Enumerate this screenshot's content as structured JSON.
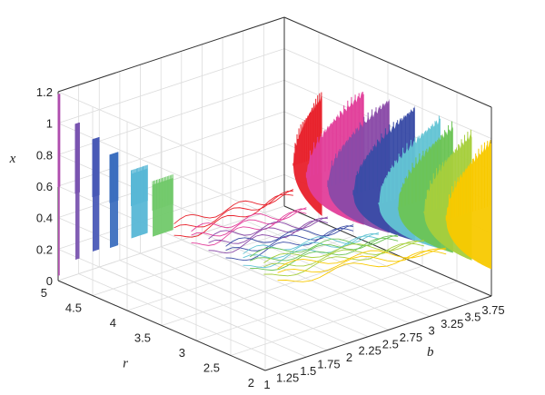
{
  "chart_data": {
    "type": "bifurcation-3d",
    "title": "",
    "axes": {
      "x_axis": {
        "label": "b",
        "range": [
          1,
          3.75
        ],
        "ticks": [
          "1",
          "1.25",
          "1.5",
          "1.75",
          "2",
          "2.25",
          "2.5",
          "2.75",
          "3",
          "3.25",
          "3.5",
          "3.75"
        ]
      },
      "r_axis": {
        "label": "r",
        "range": [
          2,
          5
        ],
        "ticks": [
          "2",
          "2.5",
          "3",
          "3.5",
          "4",
          "4.5",
          "5"
        ]
      },
      "z_axis": {
        "label": "x",
        "range": [
          0,
          1.2
        ],
        "ticks": [
          "0",
          "0.2",
          "0.4",
          "0.6",
          "0.8",
          "1",
          "1.2"
        ]
      }
    },
    "grid": true,
    "series": [
      {
        "r": 5.0,
        "color": "#b04fae",
        "b_start": 1.0,
        "b_end": 1.02,
        "x_low": 0.03,
        "x_high": 1.16
      },
      {
        "r": 4.75,
        "color": "#7a55b0",
        "b_start": 1.0,
        "b_end": 1.05,
        "x_low": 0.18,
        "x_high": 1.02
      },
      {
        "r": 4.5,
        "color": "#4a5ab7",
        "b_start": 1.0,
        "b_end": 1.08,
        "x_low": 0.28,
        "x_high": 0.97
      },
      {
        "r": 4.25,
        "color": "#3c6fbf",
        "b_start": 1.0,
        "b_end": 1.1,
        "x_low": 0.35,
        "x_high": 0.92
      },
      {
        "r": 4.0,
        "color": "#57b7d6",
        "b_start": 1.05,
        "b_end": 1.25,
        "x_low": 0.45,
        "x_high": 0.86
      },
      {
        "r": 3.75,
        "color": "#71c96a",
        "b_start": 1.1,
        "b_end": 1.35,
        "x_low": 0.5,
        "x_high": 0.83
      },
      {
        "r": 3.5,
        "color": "#e8202a",
        "b_start": 2.6,
        "b_end": 2.95,
        "x_low": 0.36,
        "x_high": 1.12
      },
      {
        "r": 3.25,
        "color": "#e23e9a",
        "b_start": 2.55,
        "b_end": 3.25,
        "x_low": 0.3,
        "x_high": 1.14
      },
      {
        "r": 3.0,
        "color": "#8a4aa8",
        "b_start": 2.6,
        "b_end": 3.35,
        "x_low": 0.28,
        "x_high": 1.12
      },
      {
        "r": 2.75,
        "color": "#3a4ca6",
        "b_start": 2.7,
        "b_end": 3.45,
        "x_low": 0.26,
        "x_high": 1.1
      },
      {
        "r": 2.5,
        "color": "#63c4d4",
        "b_start": 2.8,
        "b_end": 3.55,
        "x_low": 0.24,
        "x_high": 1.06
      },
      {
        "r": 2.4,
        "color": "#6cc455",
        "b_start": 2.95,
        "b_end": 3.62,
        "x_low": 0.22,
        "x_high": 1.02
      },
      {
        "r": 2.2,
        "color": "#a7cf3c",
        "b_start": 3.1,
        "b_end": 3.68,
        "x_low": 0.2,
        "x_high": 1.0
      },
      {
        "r": 2.0,
        "color": "#f8c900",
        "b_start": 3.2,
        "b_end": 3.75,
        "x_low": 0.17,
        "x_high": 0.98
      }
    ]
  }
}
